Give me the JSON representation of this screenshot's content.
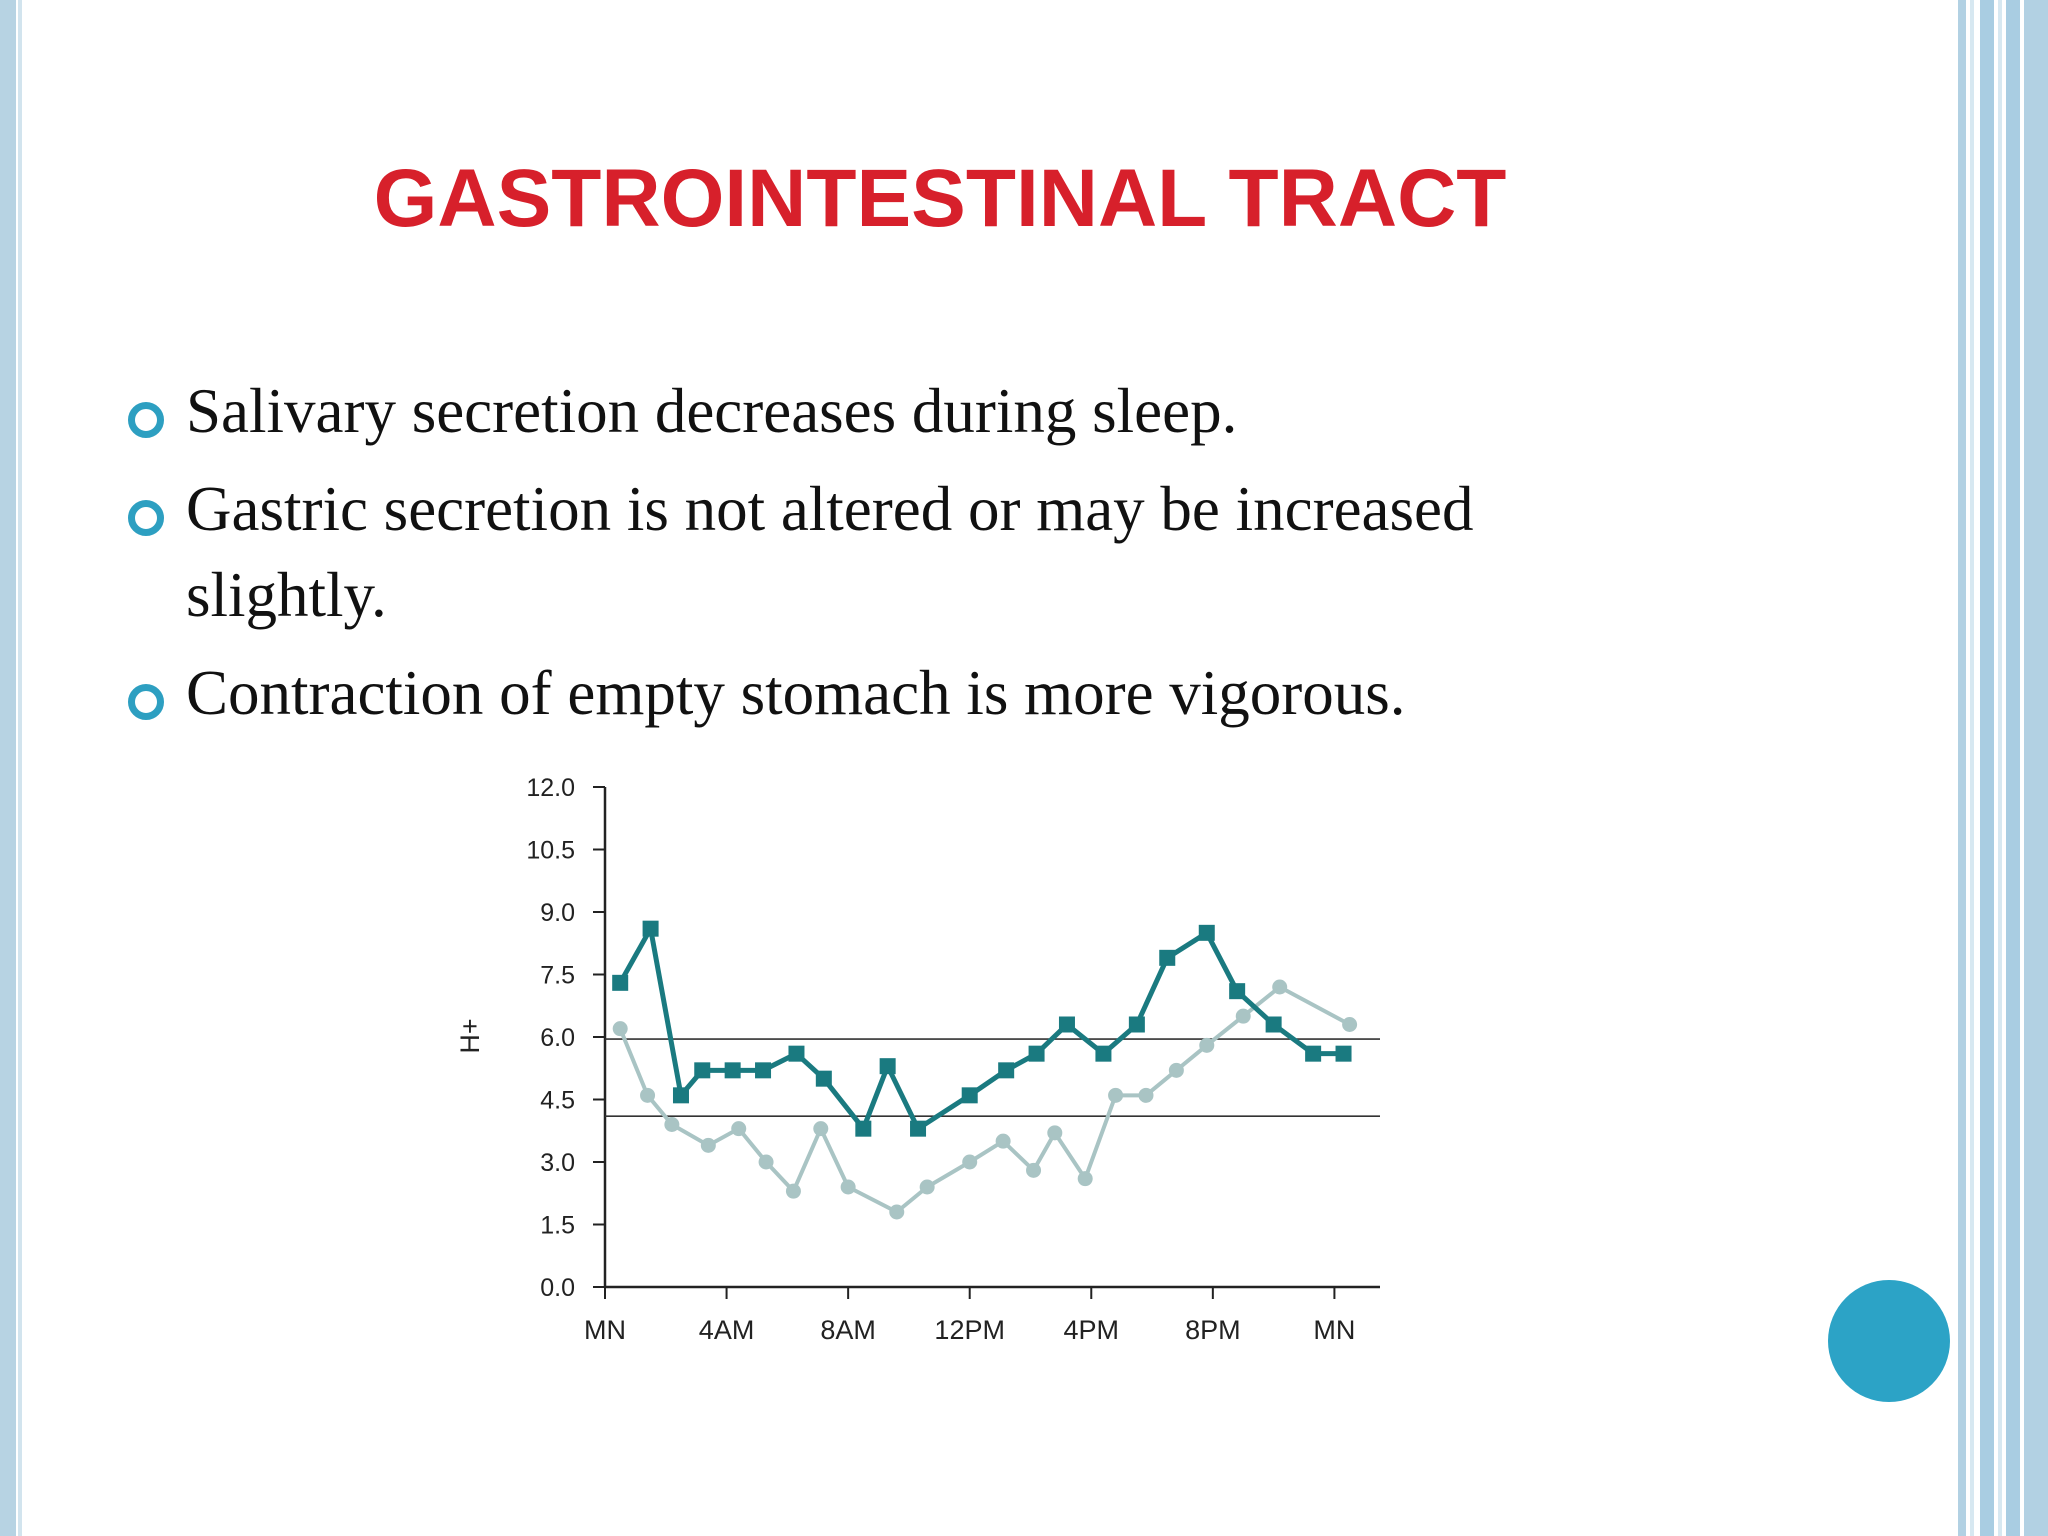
{
  "slide": {
    "title": "GASTROINTESTINAL TRACT",
    "bullets": [
      {
        "text": "Salivary secretion decreases during sleep."
      },
      {
        "text": " Gastric secretion is not altered or may be increased slightly."
      },
      {
        "text": "Contraction of empty stomach is more vigorous."
      }
    ],
    "colors": {
      "title": "#d7202b",
      "bullet_icon": "#2d9fc1",
      "accent_circle": "#2ca3c6"
    },
    "icons": {
      "bullet": "hollow-circle-icon",
      "decoration": "filled-circle-icon"
    }
  },
  "chart_data": {
    "type": "line",
    "title": "",
    "xlabel": "",
    "ylabel": "H+",
    "ylim": [
      0,
      12
    ],
    "yticks": [
      "12.0",
      "10.5",
      "9.0",
      "7.5",
      "6.0",
      "4.5",
      "3.0",
      "1.5",
      "0.0"
    ],
    "yticks_values": [
      12,
      10.5,
      9,
      7.5,
      6,
      4.5,
      3,
      1.5,
      0
    ],
    "xlim": [
      0,
      25.5
    ],
    "xticks": [
      "MN",
      "4AM",
      "8AM",
      "12PM",
      "4PM",
      "8PM",
      "MN"
    ],
    "xticks_values": [
      0,
      4,
      8,
      12,
      16,
      20,
      24
    ],
    "grid": false,
    "reference_lines": [
      5.95,
      4.1
    ],
    "series": [
      {
        "color": "#1a7a80",
        "marker": "square",
        "x": [
          0.5,
          1.5,
          2.5,
          3.2,
          4.2,
          5.2,
          6.3,
          7.2,
          8.5,
          9.3,
          10.3,
          12,
          13.2,
          14.2,
          15.2,
          16.4,
          17.5,
          18.5,
          19.8,
          20.8,
          22,
          23.3,
          24.3
        ],
        "y": [
          7.3,
          8.6,
          4.6,
          5.2,
          5.2,
          5.2,
          5.6,
          5.0,
          3.8,
          5.3,
          3.8,
          4.6,
          5.2,
          5.6,
          6.3,
          5.6,
          6.3,
          7.9,
          8.5,
          7.1,
          6.3,
          5.6,
          5.6
        ]
      },
      {
        "color": "#a9c4c4",
        "marker": "circle",
        "x": [
          0.5,
          1.4,
          2.2,
          3.4,
          4.4,
          5.3,
          6.2,
          7.1,
          8.0,
          9.6,
          10.6,
          12,
          13.1,
          14.1,
          14.8,
          15.8,
          16.8,
          17.8,
          18.8,
          19.8,
          21.0,
          22.2,
          24.5
        ],
        "y": [
          6.2,
          4.6,
          3.9,
          3.4,
          3.8,
          3.0,
          2.3,
          3.8,
          2.4,
          1.8,
          2.4,
          3.0,
          3.5,
          2.8,
          3.7,
          2.6,
          4.6,
          4.6,
          5.2,
          5.8,
          6.5,
          7.2,
          6.3
        ]
      }
    ]
  }
}
